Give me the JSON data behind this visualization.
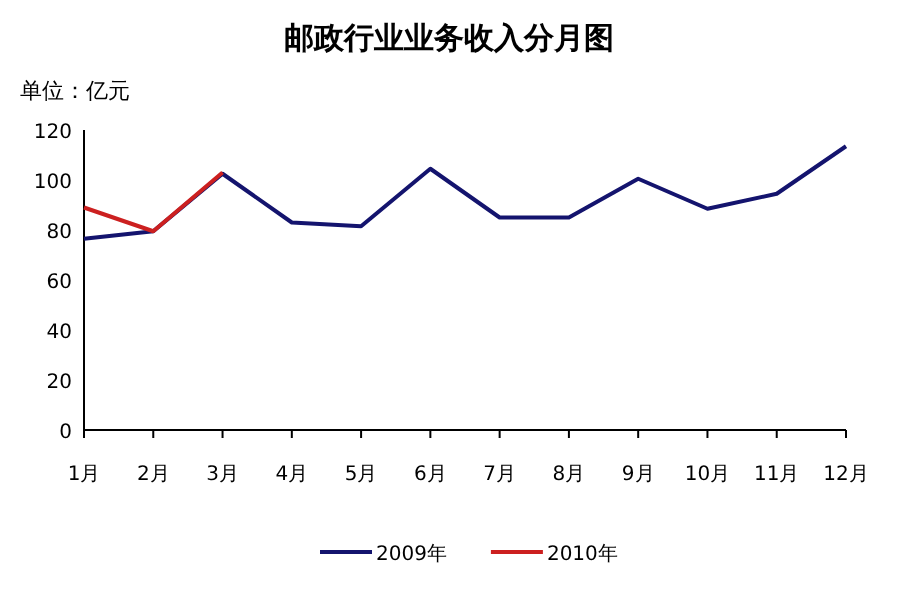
{
  "chart_data": {
    "type": "line",
    "title": "邮政行业业务收入分月图",
    "ylabel": "单位：亿元",
    "categories": [
      "1月",
      "2月",
      "3月",
      "4月",
      "5月",
      "6月",
      "7月",
      "8月",
      "9月",
      "10月",
      "11月",
      "12月"
    ],
    "series": [
      {
        "name": "2009年",
        "color": "#14146e",
        "values": [
          76.5,
          79.5,
          102.5,
          83,
          81.5,
          104.5,
          85,
          85,
          100.5,
          88.5,
          94.5,
          113.5
        ]
      },
      {
        "name": "2010年",
        "color": "#cc2020",
        "values": [
          89,
          79.5,
          103,
          null,
          null,
          null,
          null,
          null,
          null,
          null,
          null,
          null
        ]
      }
    ],
    "ylim": [
      0,
      120
    ],
    "yticks": [
      0,
      20,
      40,
      60,
      80,
      100,
      120
    ],
    "grid": false,
    "legend": "bottom",
    "marker": "none",
    "line_style": "solid"
  }
}
